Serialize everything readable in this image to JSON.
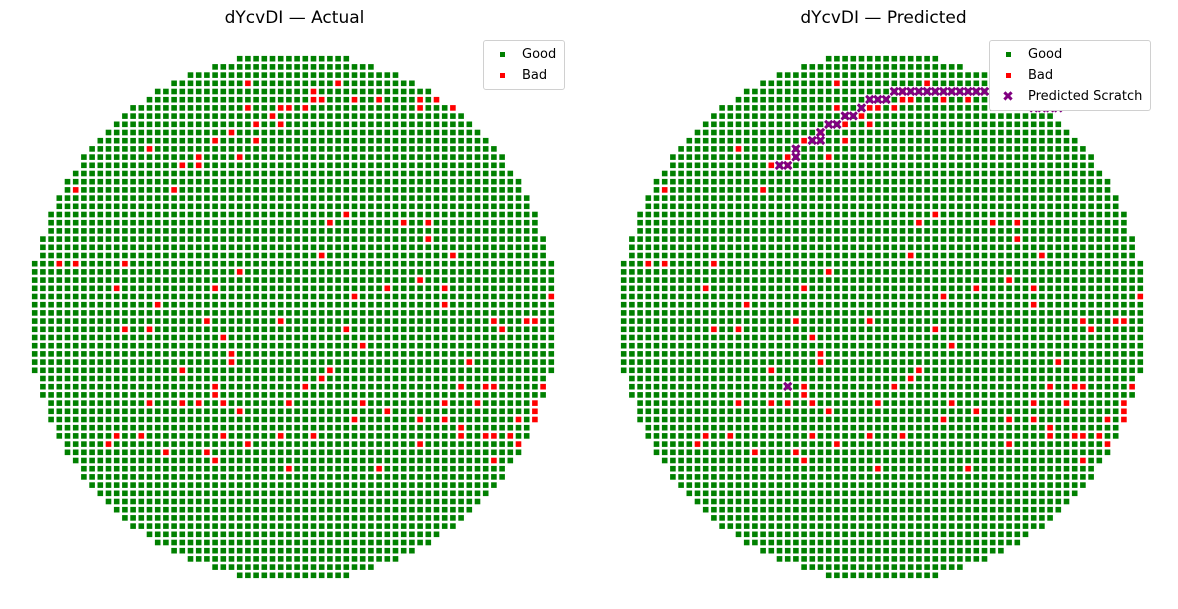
{
  "colors": {
    "good": "#008000",
    "bad": "#ff0000",
    "scratch": "#800080"
  },
  "chart_data": [
    {
      "type": "scatter",
      "title": "dYcvDI — Actual",
      "legend": {
        "placement": "top-right",
        "entries": [
          "Good",
          "Bad"
        ]
      },
      "grid": false,
      "axes": "off",
      "wafer_grid": {
        "rows": 64,
        "cols": 64,
        "shape": "circle"
      },
      "series": [
        {
          "name": "Good",
          "marker": "square",
          "color": "#008000",
          "points": "all remaining dies"
        },
        {
          "name": "Bad",
          "marker": "square",
          "color": "#ff0000",
          "points": [
            [
              27,
              4
            ],
            [
              38,
              4
            ],
            [
              15,
              5
            ],
            [
              35,
              5
            ],
            [
              35,
              6
            ],
            [
              36,
              6
            ],
            [
              40,
              6
            ],
            [
              43,
              6
            ],
            [
              48,
              6
            ],
            [
              50,
              6
            ],
            [
              51,
              6
            ],
            [
              27,
              7
            ],
            [
              31,
              7
            ],
            [
              32,
              7
            ],
            [
              34,
              7
            ],
            [
              48,
              7
            ],
            [
              52,
              7
            ],
            [
              53,
              7
            ],
            [
              30,
              8
            ],
            [
              28,
              9
            ],
            [
              31,
              9
            ],
            [
              25,
              10
            ],
            [
              23,
              11
            ],
            [
              28,
              11
            ],
            [
              15,
              12
            ],
            [
              26,
              13
            ],
            [
              21,
              13
            ],
            [
              19,
              14
            ],
            [
              21,
              14
            ],
            [
              6,
              17
            ],
            [
              18,
              17
            ],
            [
              39,
              20
            ],
            [
              37,
              21
            ],
            [
              46,
              21
            ],
            [
              49,
              21
            ],
            [
              49,
              23
            ],
            [
              36,
              25
            ],
            [
              52,
              25
            ],
            [
              4,
              26
            ],
            [
              6,
              26
            ],
            [
              12,
              26
            ],
            [
              26,
              27
            ],
            [
              48,
              28
            ],
            [
              23,
              29
            ],
            [
              44,
              29
            ],
            [
              11,
              29
            ],
            [
              51,
              29
            ],
            [
              40,
              30
            ],
            [
              64,
              30
            ],
            [
              16,
              31
            ],
            [
              51,
              31
            ],
            [
              31,
              33
            ],
            [
              57,
              33
            ],
            [
              61,
              33
            ],
            [
              62,
              33
            ],
            [
              22,
              33
            ],
            [
              12,
              34
            ],
            [
              39,
              34
            ],
            [
              58,
              34
            ],
            [
              15,
              34
            ],
            [
              24,
              35
            ],
            [
              41,
              36
            ],
            [
              25,
              37
            ],
            [
              25,
              38
            ],
            [
              54,
              38
            ],
            [
              19,
              39
            ],
            [
              37,
              39
            ],
            [
              36,
              40
            ],
            [
              23,
              41
            ],
            [
              34,
              41
            ],
            [
              53,
              41
            ],
            [
              57,
              41
            ],
            [
              56,
              41
            ],
            [
              63,
              41
            ],
            [
              23,
              42
            ],
            [
              15,
              43
            ],
            [
              19,
              43
            ],
            [
              21,
              43
            ],
            [
              24,
              43
            ],
            [
              32,
              43
            ],
            [
              41,
              43
            ],
            [
              51,
              43
            ],
            [
              55,
              43
            ],
            [
              62,
              43
            ],
            [
              26,
              44
            ],
            [
              62,
              44
            ],
            [
              60,
              45
            ],
            [
              44,
              44
            ],
            [
              40,
              45
            ],
            [
              48,
              45
            ],
            [
              51,
              45
            ],
            [
              62,
              45
            ],
            [
              63,
              45
            ],
            [
              64,
              46
            ],
            [
              53,
              46
            ],
            [
              11,
              47
            ],
            [
              14,
              47
            ],
            [
              24,
              47
            ],
            [
              31,
              47
            ],
            [
              35,
              47
            ],
            [
              53,
              47
            ],
            [
              56,
              47
            ],
            [
              57,
              47
            ],
            [
              59,
              47
            ],
            [
              62,
              47
            ],
            [
              65,
              47
            ],
            [
              10,
              48
            ],
            [
              27,
              48
            ],
            [
              48,
              48
            ],
            [
              60,
              48
            ],
            [
              17,
              49
            ],
            [
              22,
              49
            ],
            [
              63,
              49
            ],
            [
              23,
              50
            ],
            [
              57,
              50
            ],
            [
              32,
              51
            ],
            [
              43,
              51
            ]
          ]
        }
      ]
    },
    {
      "type": "scatter",
      "title": "dYcvDI — Predicted",
      "legend": {
        "placement": "top-right",
        "entries": [
          "Good",
          "Bad",
          "Predicted Scratch"
        ]
      },
      "grid": false,
      "axes": "off",
      "wafer_grid": {
        "rows": 64,
        "cols": 64,
        "shape": "circle"
      },
      "series": [
        {
          "name": "Good",
          "marker": "square",
          "color": "#008000",
          "points": "all remaining dies"
        },
        {
          "name": "Bad",
          "marker": "square",
          "color": "#ff0000",
          "points": "same as Actual"
        },
        {
          "name": "Predicted Scratch",
          "marker": "x",
          "color": "#800080",
          "points": [
            [
              20,
              14
            ],
            [
              21,
              14
            ],
            [
              22,
              13
            ],
            [
              22,
              12
            ],
            [
              24,
              11
            ],
            [
              25,
              11
            ],
            [
              25,
              10
            ],
            [
              26,
              9
            ],
            [
              27,
              9
            ],
            [
              28,
              8
            ],
            [
              29,
              8
            ],
            [
              30,
              7
            ],
            [
              31,
              6
            ],
            [
              32,
              6
            ],
            [
              33,
              6
            ],
            [
              34,
              5
            ],
            [
              35,
              5
            ],
            [
              36,
              5
            ],
            [
              37,
              5
            ],
            [
              38,
              5
            ],
            [
              39,
              5
            ],
            [
              40,
              5
            ],
            [
              41,
              5
            ],
            [
              42,
              5
            ],
            [
              43,
              5
            ],
            [
              44,
              5
            ],
            [
              45,
              5
            ],
            [
              46,
              5
            ],
            [
              47,
              6
            ],
            [
              48,
              6
            ],
            [
              49,
              6
            ],
            [
              50,
              6
            ],
            [
              51,
              7
            ],
            [
              52,
              7
            ],
            [
              53,
              7
            ],
            [
              54,
              7
            ],
            [
              21,
              41
            ]
          ]
        }
      ]
    }
  ]
}
